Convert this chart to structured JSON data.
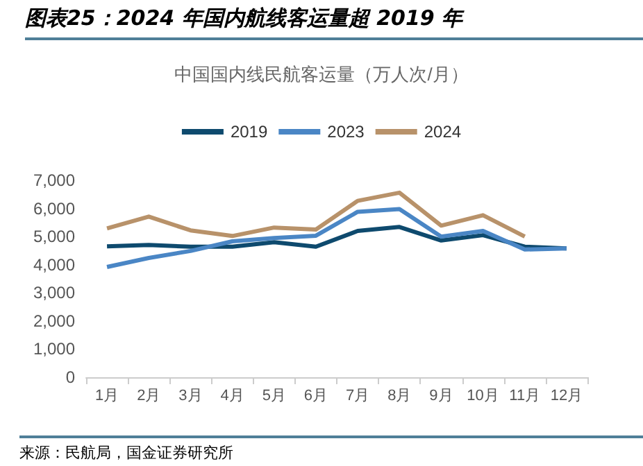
{
  "chart_data": {
    "type": "line",
    "title": "图表25：2024 年国内航线客运量超 2019 年",
    "subtitle": "中国国内线民航客运量（万人次/月）",
    "annotations": [
      "来源：民航局，国金证券研究所"
    ],
    "categories": [
      "1月",
      "2月",
      "3月",
      "4月",
      "5月",
      "6月",
      "7月",
      "8月",
      "9月",
      "10月",
      "11月",
      "12月"
    ],
    "series": [
      {
        "name": "2019",
        "color": "#0e4a6e",
        "values": [
          4650,
          4700,
          4640,
          4640,
          4800,
          4640,
          5200,
          5340,
          4860,
          5050,
          4640,
          4580
        ]
      },
      {
        "name": "2023",
        "color": "#4a86c5",
        "values": [
          3920,
          4240,
          4490,
          4830,
          4950,
          5030,
          5880,
          5980,
          5000,
          5200,
          4540,
          4580
        ]
      },
      {
        "name": "2024",
        "color": "#b8926a",
        "values": [
          5290,
          5710,
          5220,
          5020,
          5320,
          5250,
          6270,
          6560,
          5390,
          5760,
          5000,
          null
        ]
      }
    ],
    "ylim": [
      0,
      7000
    ],
    "yticks": [
      0,
      {
        "value": 1000,
        "label": "1,000"
      },
      {
        "value": 2000,
        "label": "2,000"
      },
      {
        "value": 3000,
        "label": "3,000"
      },
      {
        "value": 4000,
        "label": "4,000"
      },
      {
        "value": 5000,
        "label": "5,000"
      },
      {
        "value": 6000,
        "label": "6,000"
      },
      {
        "value": 7000,
        "label": "7,000"
      }
    ],
    "grid": false,
    "legend": "top",
    "marker": "none",
    "line_style": "solid"
  }
}
